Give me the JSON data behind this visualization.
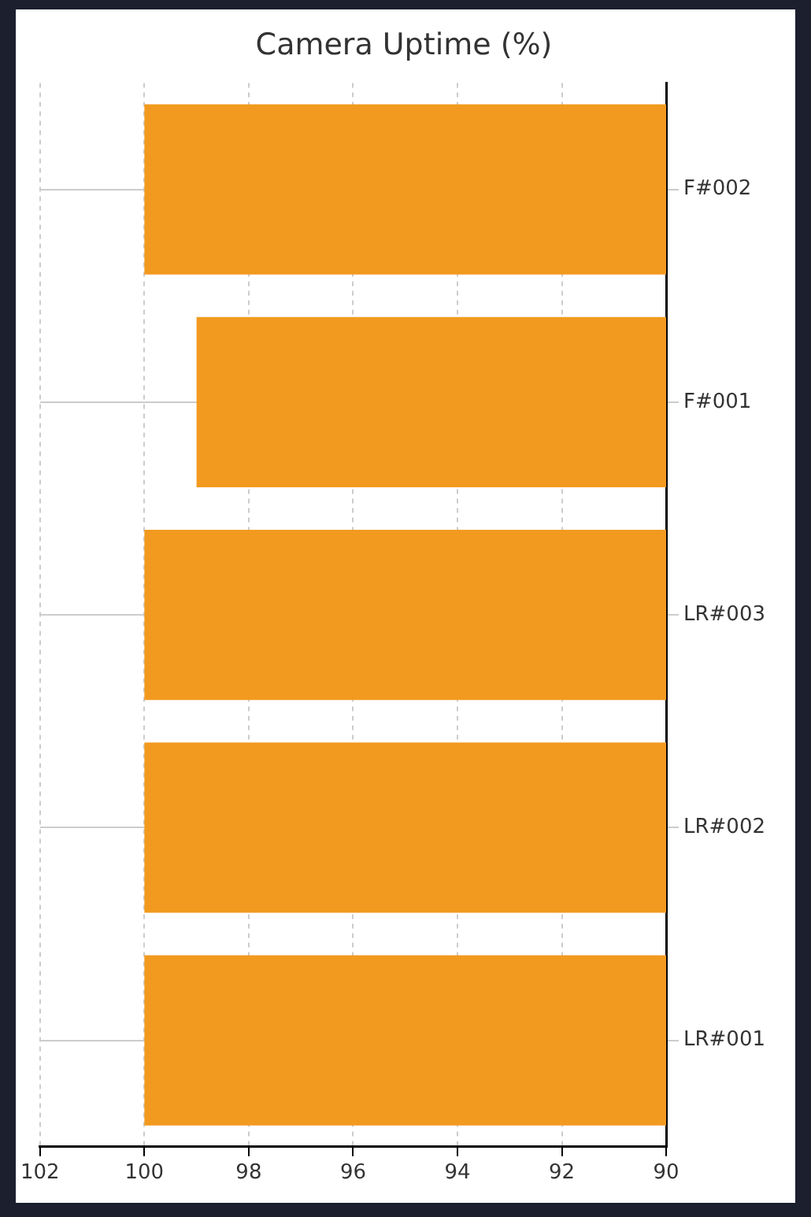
{
  "chart_data": {
    "type": "bar",
    "orientation": "horizontal",
    "title": "Camera Uptime (%)",
    "categories": [
      "F#002",
      "F#001",
      "LR#003",
      "LR#002",
      "LR#001"
    ],
    "values": [
      100,
      99,
      100,
      100,
      100
    ],
    "color": "#f29a1f",
    "xlim": [
      102,
      90
    ],
    "xticks": [
      102,
      100,
      98,
      96,
      94,
      92,
      90
    ],
    "grid": true
  }
}
